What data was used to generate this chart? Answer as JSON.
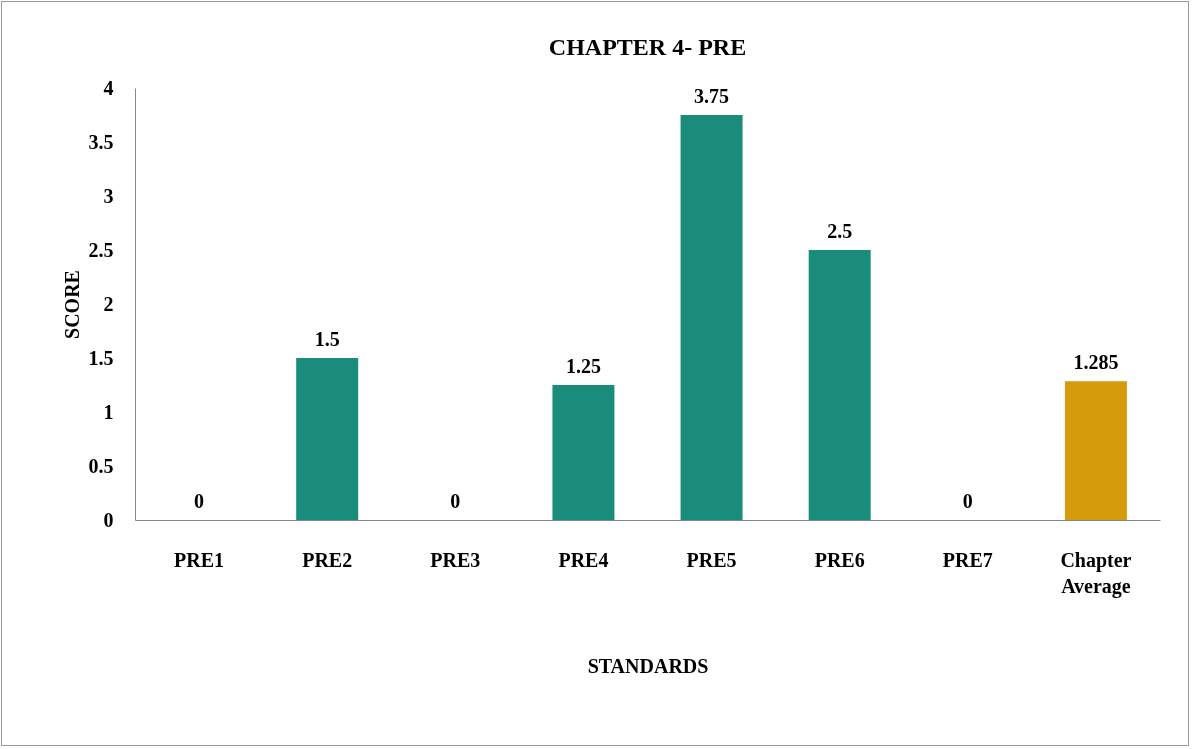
{
  "chart_data": {
    "type": "bar",
    "title": "CHAPTER 4- PRE",
    "xlabel": "STANDARDS",
    "ylabel": "SCORE",
    "categories": [
      "PRE1",
      "PRE2",
      "PRE3",
      "PRE4",
      "PRE5",
      "PRE6",
      "PRE7",
      "Chapter Average"
    ],
    "values": [
      0,
      1.5,
      0,
      1.25,
      3.75,
      2.5,
      0,
      1.285
    ],
    "colors": [
      "#1a8c7b",
      "#1a8c7b",
      "#1a8c7b",
      "#1a8c7b",
      "#1a8c7b",
      "#1a8c7b",
      "#1a8c7b",
      "#d49b0c"
    ],
    "ylim": [
      0,
      4
    ],
    "yticks": [
      0,
      0.5,
      1,
      1.5,
      2,
      2.5,
      3,
      3.5,
      4
    ],
    "grid": false,
    "data_labels": true
  }
}
